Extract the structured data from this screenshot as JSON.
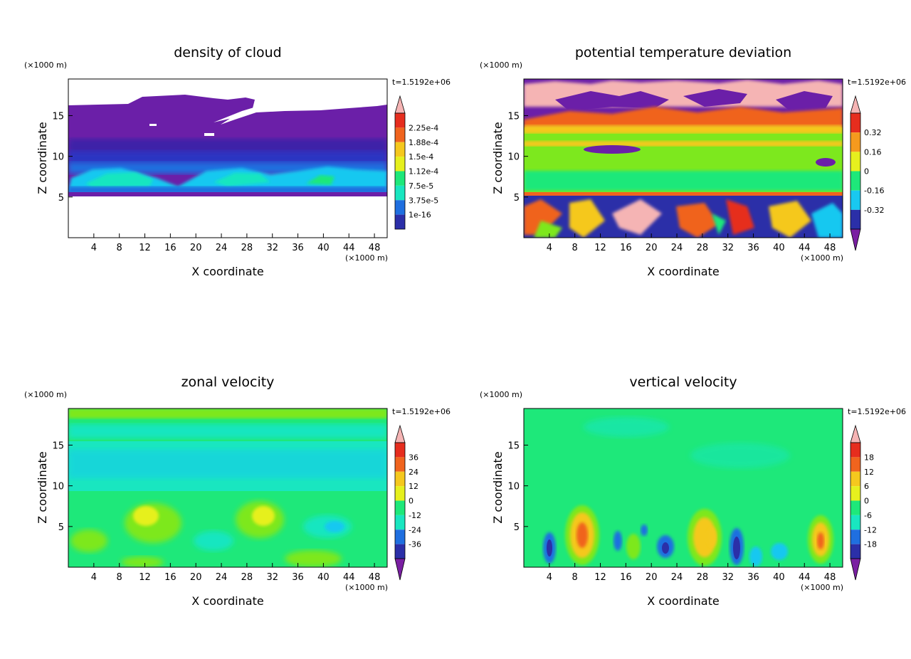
{
  "chart_data": [
    {
      "type": "heatmap",
      "id": "cloud",
      "title": "density of cloud",
      "xlabel": "X coordinate",
      "ylabel": "Z coordinate",
      "x_unit": "(×1000 m)",
      "y_unit": "(×1000 m)",
      "time_label": "t=1.5192e+06",
      "xlim": [
        0,
        50
      ],
      "ylim": [
        0,
        19.5
      ],
      "x_ticks": [
        "4",
        "8",
        "12",
        "16",
        "20",
        "24",
        "28",
        "32",
        "36",
        "40",
        "44",
        "48"
      ],
      "y_ticks": [
        "5",
        "10",
        "15"
      ],
      "colorbar_labels": [
        "1e-16",
        "3.75e-5",
        "7.5e-5",
        "1.12e-4",
        "1.5e-4",
        "1.88e-4",
        "2.25e-4"
      ]
    },
    {
      "type": "heatmap",
      "id": "theta",
      "title": "potential temperature deviation",
      "xlabel": "X coordinate",
      "ylabel": "Z coordinate",
      "x_unit": "(×1000 m)",
      "y_unit": "(×1000 m)",
      "time_label": "t=1.5192e+06",
      "xlim": [
        0,
        50
      ],
      "ylim": [
        0,
        19.5
      ],
      "x_ticks": [
        "4",
        "8",
        "12",
        "16",
        "20",
        "24",
        "28",
        "32",
        "36",
        "40",
        "44",
        "48"
      ],
      "y_ticks": [
        "5",
        "10",
        "15"
      ],
      "colorbar_labels": [
        "-0.32",
        "-0.16",
        "0",
        "0.16",
        "0.32"
      ]
    },
    {
      "type": "heatmap",
      "id": "zonal",
      "title": "zonal velocity",
      "xlabel": "X coordinate",
      "ylabel": "Z coordinate",
      "x_unit": "(×1000 m)",
      "y_unit": "(×1000 m)",
      "time_label": "t=1.5192e+06",
      "xlim": [
        0,
        50
      ],
      "ylim": [
        0,
        19.5
      ],
      "x_ticks": [
        "4",
        "8",
        "12",
        "16",
        "20",
        "24",
        "28",
        "32",
        "36",
        "40",
        "44",
        "48"
      ],
      "y_ticks": [
        "5",
        "10",
        "15"
      ],
      "colorbar_labels": [
        "-36",
        "-24",
        "-12",
        "0",
        "12",
        "24",
        "36"
      ]
    },
    {
      "type": "heatmap",
      "id": "vertical",
      "title": "vertical velocity",
      "xlabel": "X coordinate",
      "ylabel": "Z coordinate",
      "x_unit": "(×1000 m)",
      "y_unit": "(×1000 m)",
      "time_label": "t=1.5192e+06",
      "xlim": [
        0,
        50
      ],
      "ylim": [
        0,
        19.5
      ],
      "x_ticks": [
        "4",
        "8",
        "12",
        "16",
        "20",
        "24",
        "28",
        "32",
        "36",
        "40",
        "44",
        "48"
      ],
      "y_ticks": [
        "5",
        "10",
        "15"
      ],
      "colorbar_labels": [
        "-18",
        "-12",
        "-6",
        "0",
        "6",
        "12",
        "18"
      ]
    }
  ],
  "palette": [
    "#7a1fa2",
    "#2b2fa8",
    "#1f6fe0",
    "#19c8f0",
    "#19e6c0",
    "#1ee87a",
    "#7de81e",
    "#e6f01e",
    "#f5c81e",
    "#f59a1e",
    "#f0641e",
    "#e62d1e",
    "#f5b4b4"
  ]
}
